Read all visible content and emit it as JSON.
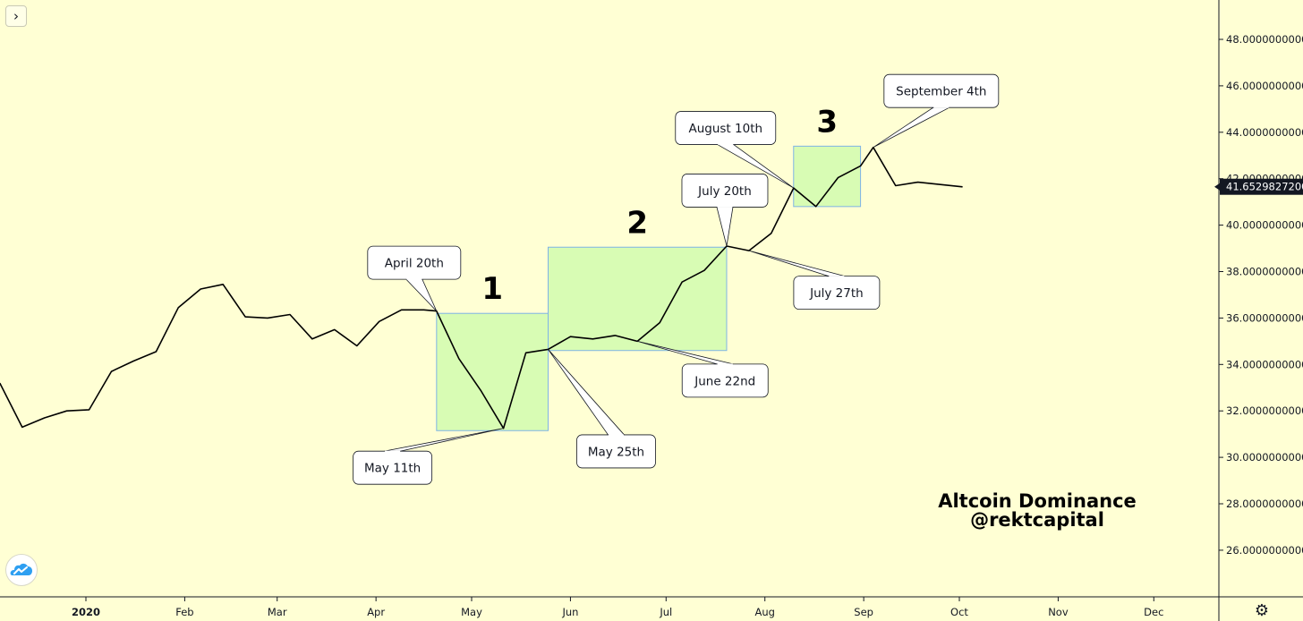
{
  "chart_data": {
    "type": "line",
    "title": "",
    "xlabel": "",
    "ylabel": "",
    "ylim": [
      24.2,
      50.0
    ],
    "grid": false,
    "legend": "none",
    "line_color": "#000000",
    "zone_fill": "#d8fcb4",
    "zone_stroke": "#7fb3e6",
    "series": [
      {
        "values": [
          [
            "2019-12-05",
            33.2
          ],
          [
            "2019-12-12",
            31.3
          ],
          [
            "2019-12-19",
            31.7
          ],
          [
            "2019-12-26",
            32.0
          ],
          [
            "2020-01-02",
            32.05
          ],
          [
            "2020-01-09",
            33.7
          ],
          [
            "2020-01-16",
            34.15
          ],
          [
            "2020-01-23",
            34.55
          ],
          [
            "2020-01-30",
            36.45
          ],
          [
            "2020-02-06",
            37.25
          ],
          [
            "2020-02-13",
            37.45
          ],
          [
            "2020-02-20",
            36.05
          ],
          [
            "2020-02-27",
            36.0
          ],
          [
            "2020-03-05",
            36.15
          ],
          [
            "2020-03-12",
            35.1
          ],
          [
            "2020-03-19",
            35.5
          ],
          [
            "2020-03-26",
            34.8
          ],
          [
            "2020-04-02",
            35.85
          ],
          [
            "2020-04-09",
            36.35
          ],
          [
            "2020-04-16",
            36.35
          ],
          [
            "2020-04-20",
            36.3
          ],
          [
            "2020-04-27",
            34.25
          ],
          [
            "2020-05-04",
            32.85
          ],
          [
            "2020-05-11",
            31.25
          ],
          [
            "2020-05-18",
            34.5
          ],
          [
            "2020-05-25",
            34.65
          ],
          [
            "2020-06-01",
            35.2
          ],
          [
            "2020-06-08",
            35.1
          ],
          [
            "2020-06-15",
            35.25
          ],
          [
            "2020-06-22",
            35.0
          ],
          [
            "2020-06-29",
            35.8
          ],
          [
            "2020-07-06",
            37.55
          ],
          [
            "2020-07-13",
            38.05
          ],
          [
            "2020-07-20",
            39.1
          ],
          [
            "2020-07-27",
            38.9
          ],
          [
            "2020-08-03",
            39.65
          ],
          [
            "2020-08-10",
            41.6
          ],
          [
            "2020-08-17",
            40.8
          ],
          [
            "2020-08-24",
            42.05
          ],
          [
            "2020-08-31",
            42.55
          ],
          [
            "2020-09-04",
            43.35
          ],
          [
            "2020-09-11",
            41.7
          ],
          [
            "2020-09-18",
            41.85
          ],
          [
            "2020-10-02",
            41.65
          ]
        ]
      }
    ],
    "y_ticks": [
      "26.0000000000",
      "28.0000000000",
      "30.0000000000",
      "32.0000000000",
      "34.0000000000",
      "36.0000000000",
      "38.0000000000",
      "40.0000000000",
      "42.0000000000",
      "44.0000000000",
      "46.0000000000",
      "48.0000000000"
    ],
    "x_ticks": [
      {
        "date": "2020-01-01",
        "label": "2020",
        "bold": true
      },
      {
        "date": "2020-02-01",
        "label": "Feb"
      },
      {
        "date": "2020-03-01",
        "label": "Mar"
      },
      {
        "date": "2020-04-01",
        "label": "Apr"
      },
      {
        "date": "2020-05-01",
        "label": "May"
      },
      {
        "date": "2020-06-01",
        "label": "Jun"
      },
      {
        "date": "2020-07-01",
        "label": "Jul"
      },
      {
        "date": "2020-08-01",
        "label": "Aug"
      },
      {
        "date": "2020-09-01",
        "label": "Sep"
      },
      {
        "date": "2020-10-01",
        "label": "Oct"
      },
      {
        "date": "2020-11-01",
        "label": "Nov"
      },
      {
        "date": "2020-12-01",
        "label": "Dec"
      }
    ],
    "last_price_label": "41.6529827200",
    "zones": [
      {
        "label": "1",
        "x_start": "2020-04-20",
        "x_end": "2020-05-25",
        "y_low": 31.15,
        "y_high": 36.2
      },
      {
        "label": "2",
        "x_start": "2020-05-25",
        "x_end": "2020-07-20",
        "y_low": 34.6,
        "y_high": 39.05
      },
      {
        "label": "3",
        "x_start": "2020-08-10",
        "x_end": "2020-08-31",
        "y_low": 40.8,
        "y_high": 43.4
      }
    ],
    "annotations": [
      {
        "text": "April 20th",
        "date": "2020-04-20",
        "value": 36.3,
        "placement": "above-left"
      },
      {
        "text": "May 11th",
        "date": "2020-05-11",
        "value": 31.25,
        "placement": "below-left"
      },
      {
        "text": "May 25th",
        "date": "2020-05-25",
        "value": 34.65,
        "placement": "below-right"
      },
      {
        "text": "June 22nd",
        "date": "2020-06-22",
        "value": 35.0,
        "placement": "below-right"
      },
      {
        "text": "July 20th",
        "date": "2020-07-20",
        "value": 39.1,
        "placement": "above"
      },
      {
        "text": "July 27th",
        "date": "2020-07-27",
        "value": 38.9,
        "placement": "below-right"
      },
      {
        "text": "August 10th",
        "date": "2020-08-10",
        "value": 41.6,
        "placement": "above-left"
      },
      {
        "text": "September 4th",
        "date": "2020-09-04",
        "value": 43.35,
        "placement": "above-right"
      }
    ],
    "watermark": [
      "Altcoin Dominance",
      "@rektcapital"
    ]
  },
  "icons": {
    "expand": "chevron-right-icon",
    "logo": "tradingview-cloud-icon",
    "settings": "gear-icon"
  },
  "ui": {
    "expand_glyph": "›",
    "settings_glyph": "⚙"
  }
}
